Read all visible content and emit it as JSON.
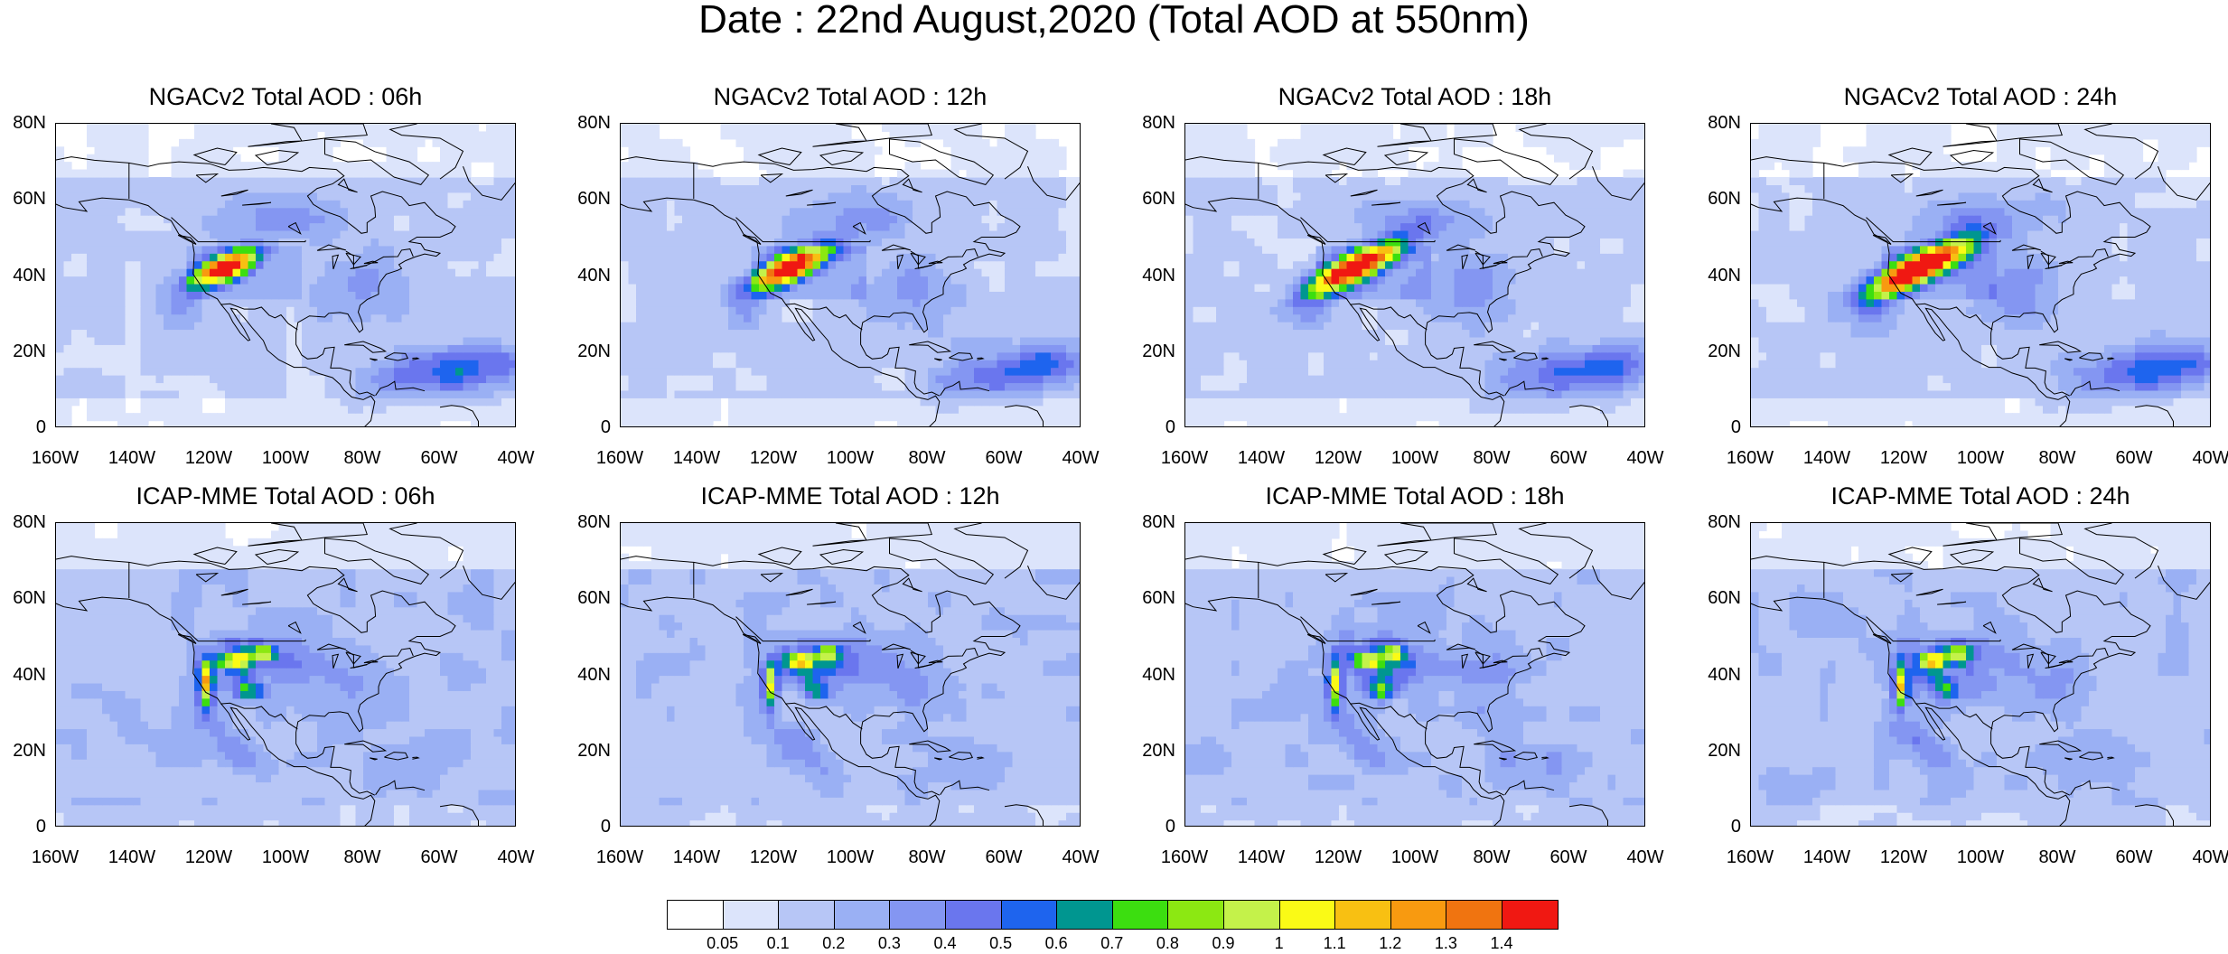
{
  "title": "Date : 22nd August,2020 (Total AOD at 550nm)",
  "panels": [
    {
      "label": "NGACv2 Total AOD : 06h",
      "model": "NGACv2",
      "hour": 6
    },
    {
      "label": "NGACv2 Total AOD : 12h",
      "model": "NGACv2",
      "hour": 12
    },
    {
      "label": "NGACv2 Total AOD : 18h",
      "model": "NGACv2",
      "hour": 18
    },
    {
      "label": "NGACv2 Total AOD : 24h",
      "model": "NGACv2",
      "hour": 24
    },
    {
      "label": "ICAP-MME Total AOD : 06h",
      "model": "ICAP-MME",
      "hour": 6
    },
    {
      "label": "ICAP-MME Total AOD : 12h",
      "model": "ICAP-MME",
      "hour": 12
    },
    {
      "label": "ICAP-MME Total AOD : 18h",
      "model": "ICAP-MME",
      "hour": 18
    },
    {
      "label": "ICAP-MME Total AOD : 24h",
      "model": "ICAP-MME",
      "hour": 24
    }
  ],
  "y_ticks": [
    "80N",
    "60N",
    "40N",
    "20N",
    "0"
  ],
  "x_ticks": [
    "160W",
    "140W",
    "120W",
    "100W",
    "80W",
    "60W",
    "40W"
  ],
  "lat_range": [
    0,
    80
  ],
  "lon_range": [
    -160,
    -40
  ],
  "colorbar": {
    "colors": [
      "#ffffff",
      "#dce4fb",
      "#b7c6f6",
      "#9ab0f4",
      "#8496f2",
      "#6a76ee",
      "#1e64ee",
      "#009690",
      "#3cde10",
      "#8ce812",
      "#c4f24a",
      "#fafa16",
      "#f8c012",
      "#f89a10",
      "#f07410",
      "#f01812"
    ],
    "labels": [
      "0.05",
      "0.1",
      "0.2",
      "0.3",
      "0.4",
      "0.5",
      "0.6",
      "0.7",
      "0.8",
      "0.9",
      "1",
      "1.1",
      "1.2",
      "1.3",
      "1.4"
    ]
  }
}
